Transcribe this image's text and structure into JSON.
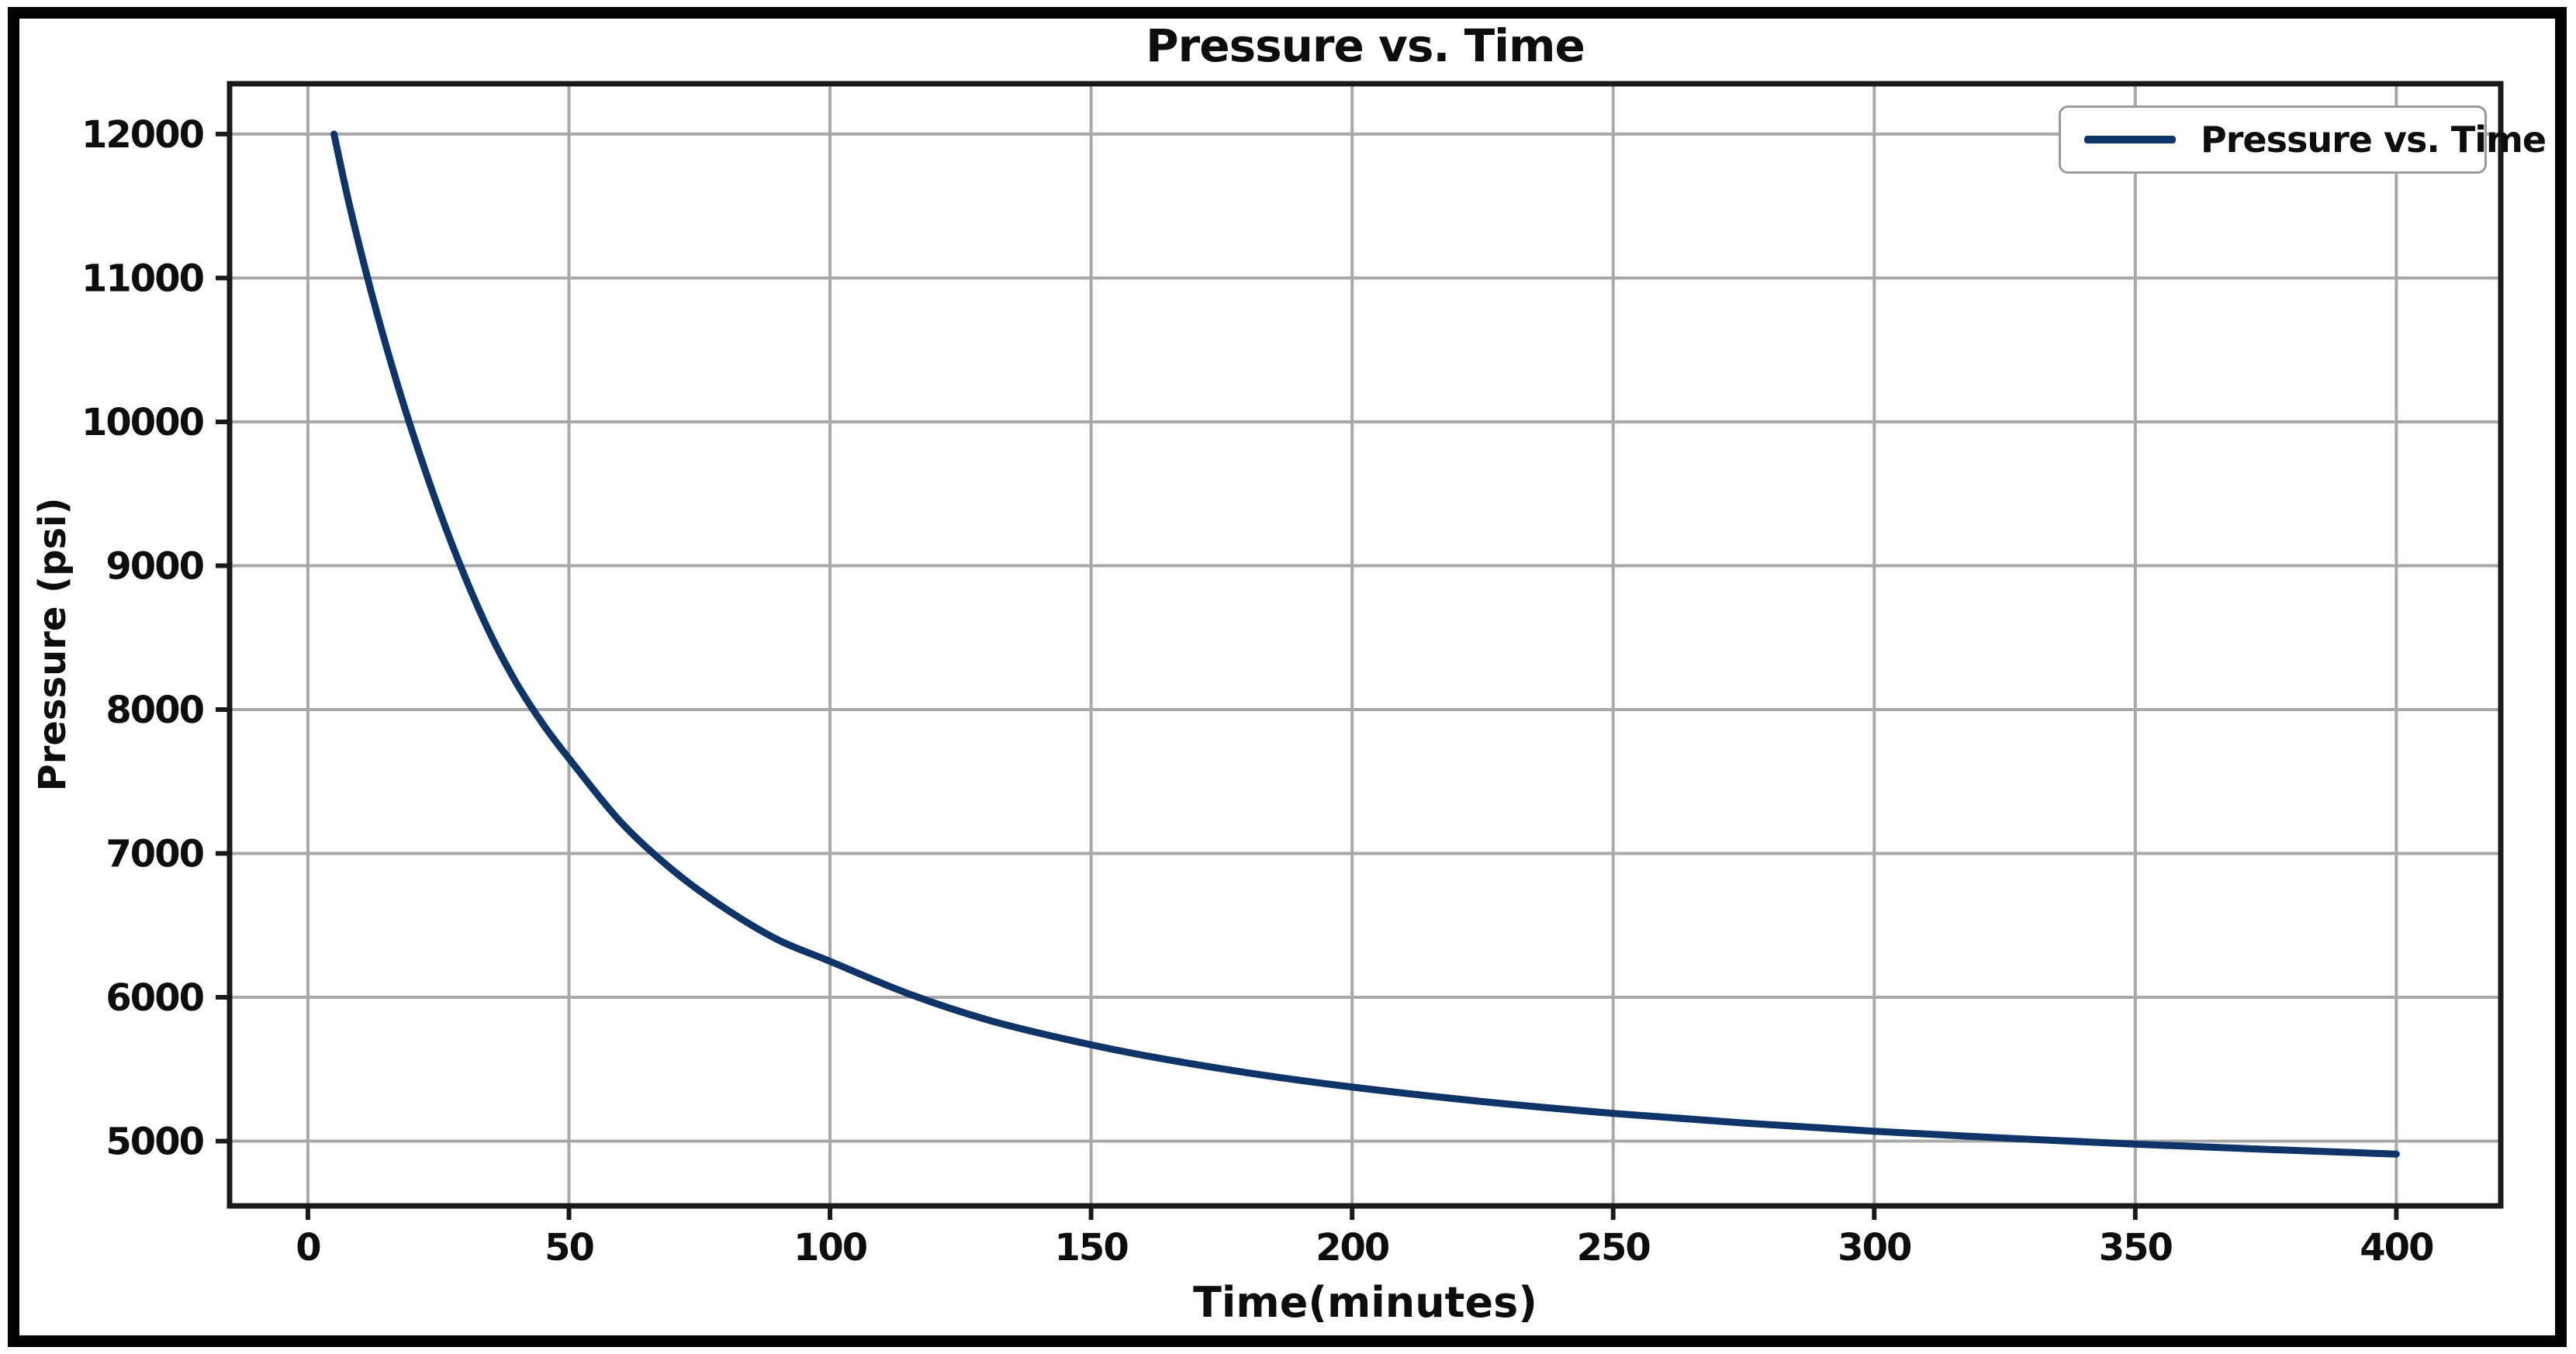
{
  "figure": {
    "background": "#ffffff",
    "border_color": "#000000"
  },
  "chart_data": {
    "type": "line",
    "title": "Pressure vs. Time",
    "xlabel": "Time(minutes)",
    "ylabel": "Pressure (psi)",
    "xlim": [
      -15,
      420
    ],
    "ylim": [
      4550,
      12350
    ],
    "xticks": [
      0,
      50,
      100,
      150,
      200,
      250,
      300,
      350,
      400
    ],
    "yticks": [
      5000,
      6000,
      7000,
      8000,
      9000,
      10000,
      11000,
      12000
    ],
    "grid": true,
    "legend": {
      "position": "upper right",
      "entries": [
        {
          "label": "Pressure vs. Time",
          "color": "#0e3468"
        }
      ]
    },
    "colors": {
      "line": "#0e3468",
      "grid": "#a8a8a8",
      "axis": "#1a1a1a",
      "tick_text": "#0d0d0d",
      "legend_border": "#9a9a9a"
    },
    "series": [
      {
        "name": "Pressure vs. Time",
        "x": [
          5,
          8,
          12,
          16,
          20,
          25,
          30,
          35,
          40,
          45,
          50,
          60,
          70,
          80,
          90,
          100,
          115,
          130,
          145,
          160,
          180,
          200,
          225,
          250,
          275,
          300,
          325,
          350,
          375,
          400
        ],
        "y": [
          12000,
          11500,
          10920,
          10400,
          9930,
          9400,
          8930,
          8520,
          8180,
          7900,
          7660,
          7215,
          6880,
          6615,
          6400,
          6250,
          6025,
          5845,
          5710,
          5597,
          5475,
          5376,
          5275,
          5193,
          5126,
          5069,
          5021,
          4979,
          4943,
          4910
        ]
      }
    ]
  }
}
